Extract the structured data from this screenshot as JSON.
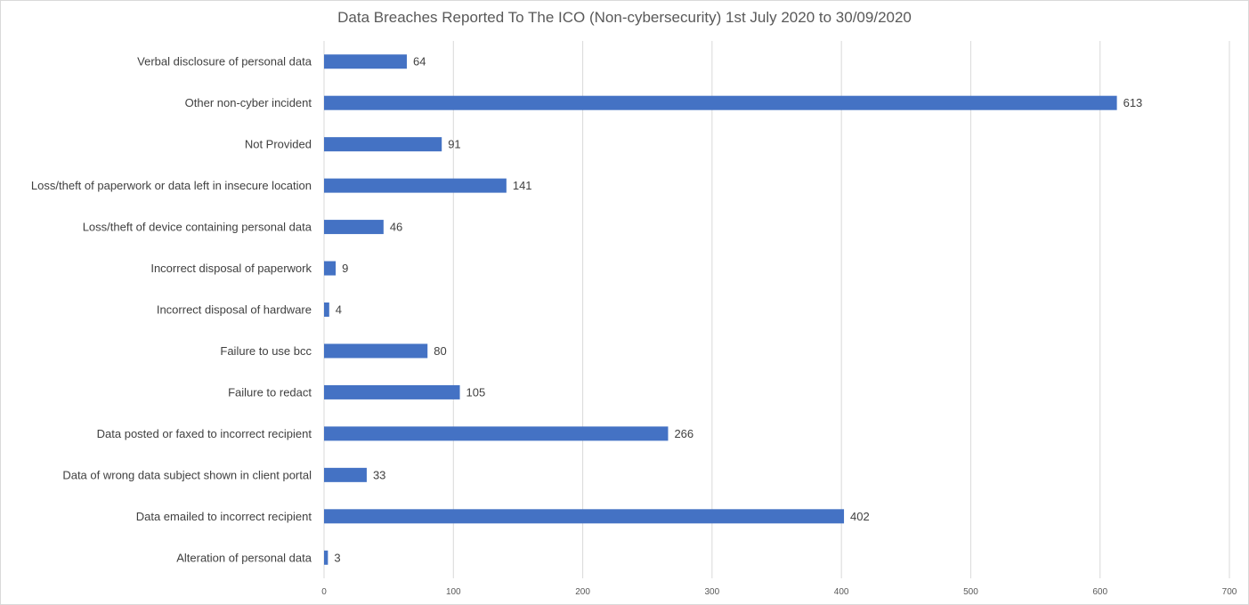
{
  "chart_data": {
    "type": "bar",
    "orientation": "horizontal",
    "title": "Data Breaches Reported To The ICO (Non-cybersecurity) 1st July 2020 to 30/09/2020",
    "xlabel": "",
    "ylabel": "",
    "categories": [
      "Verbal disclosure of personal data",
      "Other non-cyber incident",
      "Not Provided",
      "Loss/theft of paperwork or data left in insecure location",
      "Loss/theft of device containing personal data",
      "Incorrect disposal of paperwork",
      "Incorrect disposal of hardware",
      "Failure to use bcc",
      "Failure to redact",
      "Data posted or faxed to incorrect recipient",
      "Data of wrong data subject shown in client portal",
      "Data emailed to incorrect recipient",
      "Alteration of personal data"
    ],
    "values": [
      64,
      613,
      91,
      141,
      46,
      9,
      4,
      80,
      105,
      266,
      33,
      402,
      3
    ],
    "xlim": [
      0,
      700
    ],
    "xticks": [
      "0",
      "100",
      "200",
      "300",
      "400",
      "500",
      "600",
      "700"
    ],
    "grid": true,
    "legend": "none",
    "bar_color": "#4472c4",
    "data_labels": true
  }
}
